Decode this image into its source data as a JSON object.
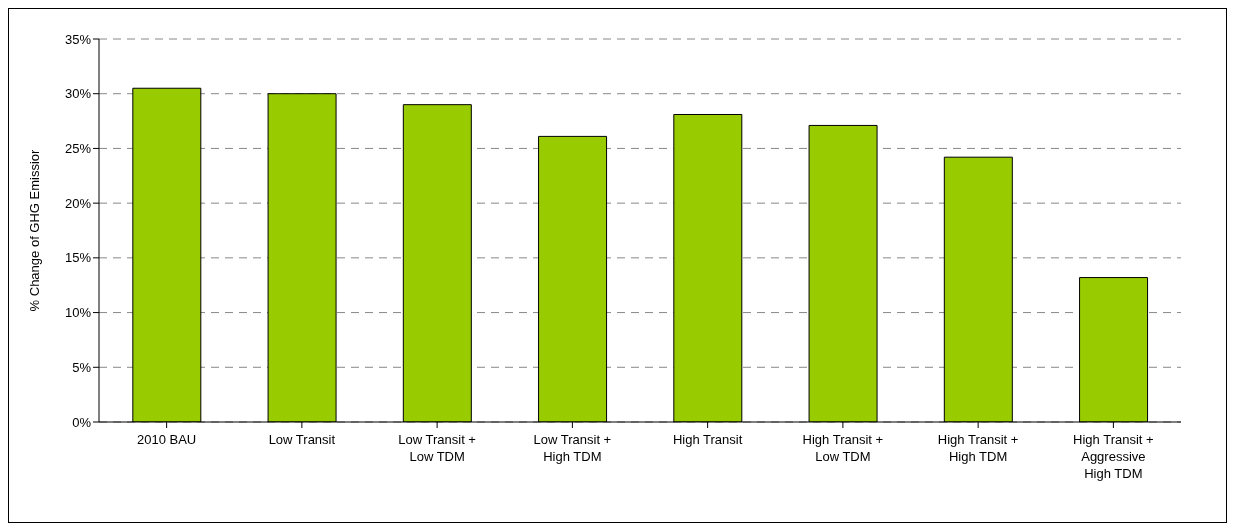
{
  "chart_data": {
    "type": "bar",
    "categories": [
      "2010 BAU",
      "Low Transit",
      "Low Transit +\nLow TDM",
      "Low Transit +\nHigh TDM",
      "High Transit",
      "High Transit +\nLow TDM",
      "High Transit +\nHigh TDM",
      "High Transit +\nAggressive\nHigh TDM"
    ],
    "values": [
      30.5,
      30,
      29,
      26.1,
      28.1,
      27.1,
      24.2,
      13.2
    ],
    "color": "#99cc00",
    "ylabel": "% Change of GHG Emissior",
    "ylim": [
      0,
      35
    ],
    "yticks": [
      {
        "value": 0,
        "label": "0%"
      },
      {
        "value": 5,
        "label": "5%"
      },
      {
        "value": 10,
        "label": "10%"
      },
      {
        "value": 15,
        "label": "15%"
      },
      {
        "value": 20,
        "label": "20%"
      },
      {
        "value": 25,
        "label": "25%"
      },
      {
        "value": 30,
        "label": "30%"
      },
      {
        "value": 35,
        "label": "35%"
      }
    ],
    "grid": "y"
  }
}
